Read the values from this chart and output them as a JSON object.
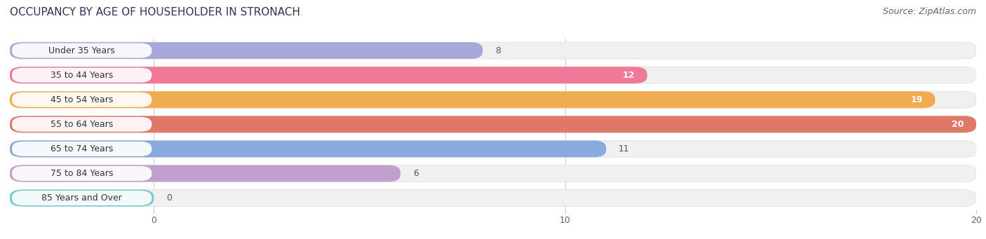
{
  "title": "OCCUPANCY BY AGE OF HOUSEHOLDER IN STRONACH",
  "source": "Source: ZipAtlas.com",
  "categories": [
    "Under 35 Years",
    "35 to 44 Years",
    "45 to 54 Years",
    "55 to 64 Years",
    "65 to 74 Years",
    "75 to 84 Years",
    "85 Years and Over"
  ],
  "values": [
    8,
    12,
    19,
    20,
    11,
    6,
    0
  ],
  "bar_colors": [
    "#a8a8d8",
    "#f07898",
    "#f0aa50",
    "#e07868",
    "#88aadd",
    "#c0a0cc",
    "#70cccc"
  ],
  "bar_bg_color": "#f0f0f0",
  "xlim_max": 20,
  "xticks": [
    0,
    10,
    20
  ],
  "title_fontsize": 11,
  "source_fontsize": 9,
  "label_fontsize": 9,
  "value_fontsize": 9,
  "background_color": "#ffffff",
  "bar_height": 0.68,
  "label_box_color": "#ffffff"
}
